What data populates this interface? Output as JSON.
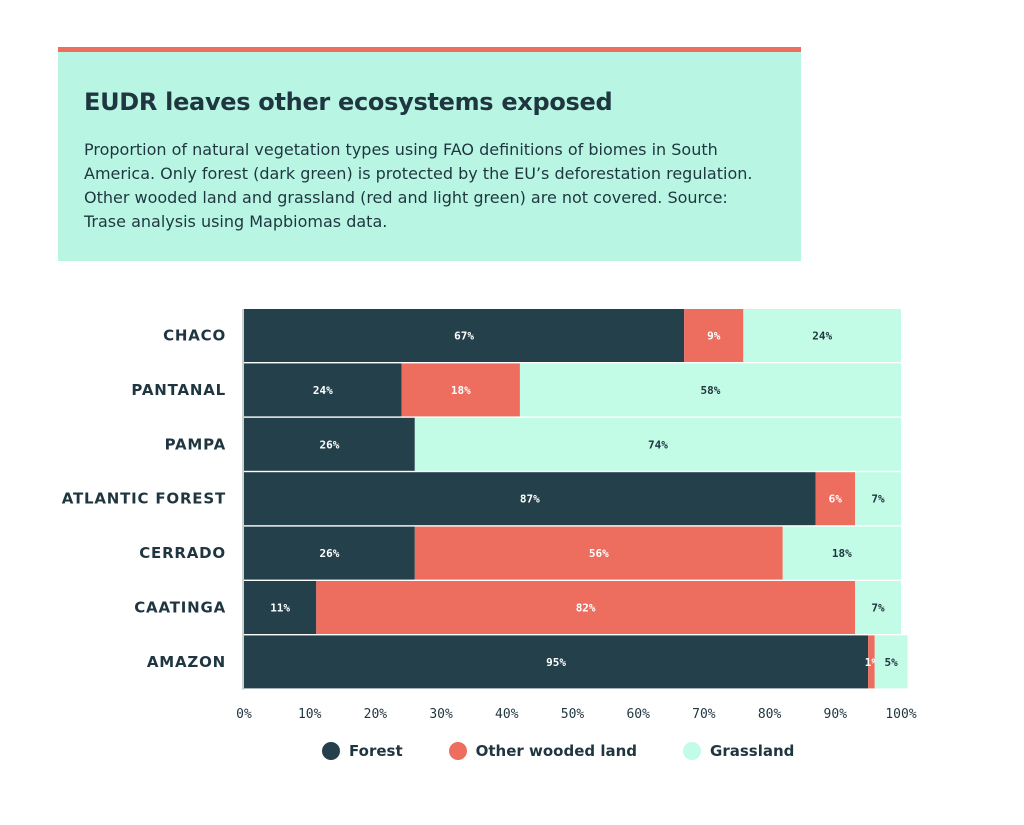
{
  "header": {
    "title": "EUDR leaves other ecosystems exposed",
    "subtitle": "Proportion of natural vegetation types using FAO definitions of biomes in South America. Only forest (dark green) is protected by the EU’s deforestation regulation. Other wooded land and grassland (red and light green) are not covered. Source: Trase analysis using Mapbiomas data."
  },
  "colors": {
    "forest": "#24404a",
    "other_wooded_land": "#ed6d5f",
    "grassland": "#c2fbe6",
    "header_bg": "#b8f6e3",
    "accent": "#ed6d5f"
  },
  "chart_data": {
    "type": "bar",
    "orientation": "horizontal",
    "stacked": true,
    "categories": [
      "CHACO",
      "PANTANAL",
      "PAMPA",
      "ATLANTIC FOREST",
      "CERRADO",
      "CAATINGA",
      "AMAZON"
    ],
    "series": [
      {
        "name": "Forest",
        "values": [
          67,
          24,
          26,
          87,
          26,
          11,
          95
        ],
        "labels": [
          "67%",
          "24%",
          "26%",
          "87%",
          "26%",
          "11%",
          "95%"
        ]
      },
      {
        "name": "Other wooded land",
        "values": [
          9,
          18,
          0,
          6,
          56,
          82,
          1
        ],
        "labels": [
          "9%",
          "18%",
          "",
          "6%",
          "56%",
          "82%",
          "1%"
        ]
      },
      {
        "name": "Grassland",
        "values": [
          24,
          58,
          74,
          7,
          18,
          7,
          5
        ],
        "labels": [
          "24%",
          "58%",
          "74%",
          "7%",
          "18%",
          "7%",
          "5%"
        ]
      }
    ],
    "xlim": [
      0,
      100
    ],
    "x_ticks": [
      "0%",
      "10%",
      "20%",
      "30%",
      "40%",
      "50%",
      "60%",
      "70%",
      "80%",
      "90%",
      "100%"
    ],
    "legend_position": "bottom",
    "grid": false
  },
  "legend": [
    {
      "label": "Forest",
      "color_key": "forest"
    },
    {
      "label": "Other wooded land",
      "color_key": "other_wooded_land"
    },
    {
      "label": "Grassland",
      "color_key": "grassland"
    }
  ]
}
